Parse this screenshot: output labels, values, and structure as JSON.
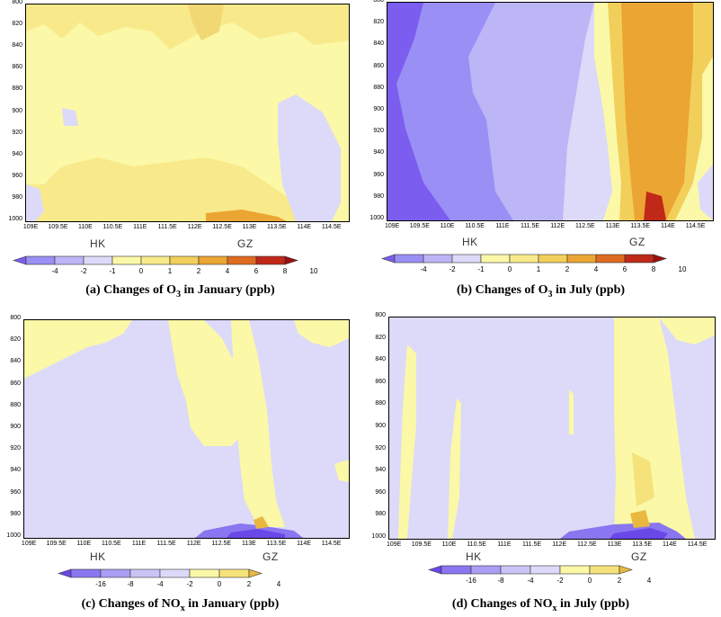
{
  "chart_data": [
    {
      "id": "a",
      "type": "heatmap",
      "title": "(a) Changes of O3 in January (ppb)",
      "caption_main": "(a) Changes of O",
      "caption_sub": "3",
      "caption_tail": " in January (ppb)",
      "y_ticks": [
        "800",
        "820",
        "840",
        "860",
        "880",
        "900",
        "920",
        "940",
        "960",
        "980",
        "1000"
      ],
      "x_ticks": [
        "109E",
        "109.5E",
        "110E",
        "110.5E",
        "111E",
        "111.5E",
        "112E",
        "112.5E",
        "113E",
        "113.5E",
        "114E",
        "114.5E"
      ],
      "cities": [
        "HK",
        "GZ"
      ],
      "colorbar_labels": [
        "-4",
        "-2",
        "-1",
        "0",
        "1",
        "2",
        "4",
        "6",
        "8",
        "10"
      ],
      "colorbar_colors": [
        "#7b5ef0",
        "#9a8ff5",
        "#bcb6f7",
        "#dcdaf8",
        "#fbf8a8",
        "#f8ea8a",
        "#f2cf5a",
        "#eba533",
        "#de6a20",
        "#c02818",
        "#9a1010"
      ],
      "ylim": [
        1000,
        800
      ],
      "xlim": [
        108.9,
        114.8
      ]
    },
    {
      "id": "b",
      "type": "heatmap",
      "title": "(b) Changes of O3 in July (ppb)",
      "caption_main": "(b) Changes of O",
      "caption_sub": "3",
      "caption_tail": " in July (ppb)",
      "y_ticks": [
        "800",
        "820",
        "840",
        "860",
        "880",
        "900",
        "920",
        "940",
        "960",
        "980",
        "1000"
      ],
      "x_ticks": [
        "109E",
        "109.5E",
        "110E",
        "110.5E",
        "111E",
        "111.5E",
        "112E",
        "112.5E",
        "113E",
        "113.5E",
        "114E",
        "114.5E"
      ],
      "cities": [
        "HK",
        "GZ"
      ],
      "colorbar_labels": [
        "-4",
        "-2",
        "-1",
        "0",
        "1",
        "2",
        "4",
        "6",
        "8",
        "10"
      ],
      "colorbar_colors": [
        "#7b5ef0",
        "#9a8ff5",
        "#bcb6f7",
        "#dcdaf8",
        "#fbf8a8",
        "#f8ea8a",
        "#f2cf5a",
        "#eba533",
        "#de6a20",
        "#c02818",
        "#9a1010"
      ],
      "ylim": [
        1000,
        800
      ],
      "xlim": [
        108.9,
        114.8
      ]
    },
    {
      "id": "c",
      "type": "heatmap",
      "title": "(c) Changes of NOx in January (ppb)",
      "caption_main": "(c) Changes of NO",
      "caption_sub": "x",
      "caption_tail": " in January (ppb)",
      "y_ticks": [
        "800",
        "820",
        "840",
        "860",
        "880",
        "900",
        "920",
        "940",
        "960",
        "980",
        "1000"
      ],
      "x_ticks": [
        "109E",
        "109.5E",
        "110E",
        "110.5E",
        "111E",
        "111.5E",
        "112E",
        "112.5E",
        "113E",
        "113.5E",
        "114E",
        "114.5E"
      ],
      "cities": [
        "HK",
        "GZ"
      ],
      "colorbar_labels": [
        "-16",
        "-8",
        "-4",
        "-2",
        "0",
        "2",
        "4"
      ],
      "colorbar_colors": [
        "#6a48e8",
        "#8a76f0",
        "#a99ef4",
        "#c8c4f6",
        "#dcdaf8",
        "#fbf8a8",
        "#f5e27a",
        "#e8b840"
      ],
      "ylim": [
        1000,
        800
      ],
      "xlim": [
        108.9,
        114.8
      ]
    },
    {
      "id": "d",
      "type": "heatmap",
      "title": "(d) Changes of NOx in July (ppb)",
      "caption_main": "(d) Changes of NO",
      "caption_sub": "x",
      "caption_tail": " in July (ppb)",
      "y_ticks": [
        "800",
        "820",
        "840",
        "860",
        "880",
        "900",
        "920",
        "940",
        "960",
        "980",
        "1000"
      ],
      "x_ticks": [
        "109E",
        "109.5E",
        "110E",
        "110.5E",
        "111E",
        "111.5E",
        "112E",
        "112.5E",
        "113E",
        "113.5E",
        "114E",
        "114.5E"
      ],
      "cities": [
        "HK",
        "GZ"
      ],
      "colorbar_labels": [
        "-16",
        "-8",
        "-4",
        "-2",
        "0",
        "2",
        "4"
      ],
      "colorbar_colors": [
        "#6a48e8",
        "#8a76f0",
        "#a99ef4",
        "#c8c4f6",
        "#dcdaf8",
        "#fbf8a8",
        "#f5e27a",
        "#e8b840"
      ],
      "ylim": [
        1000,
        800
      ],
      "xlim": [
        108.9,
        114.8
      ]
    }
  ]
}
